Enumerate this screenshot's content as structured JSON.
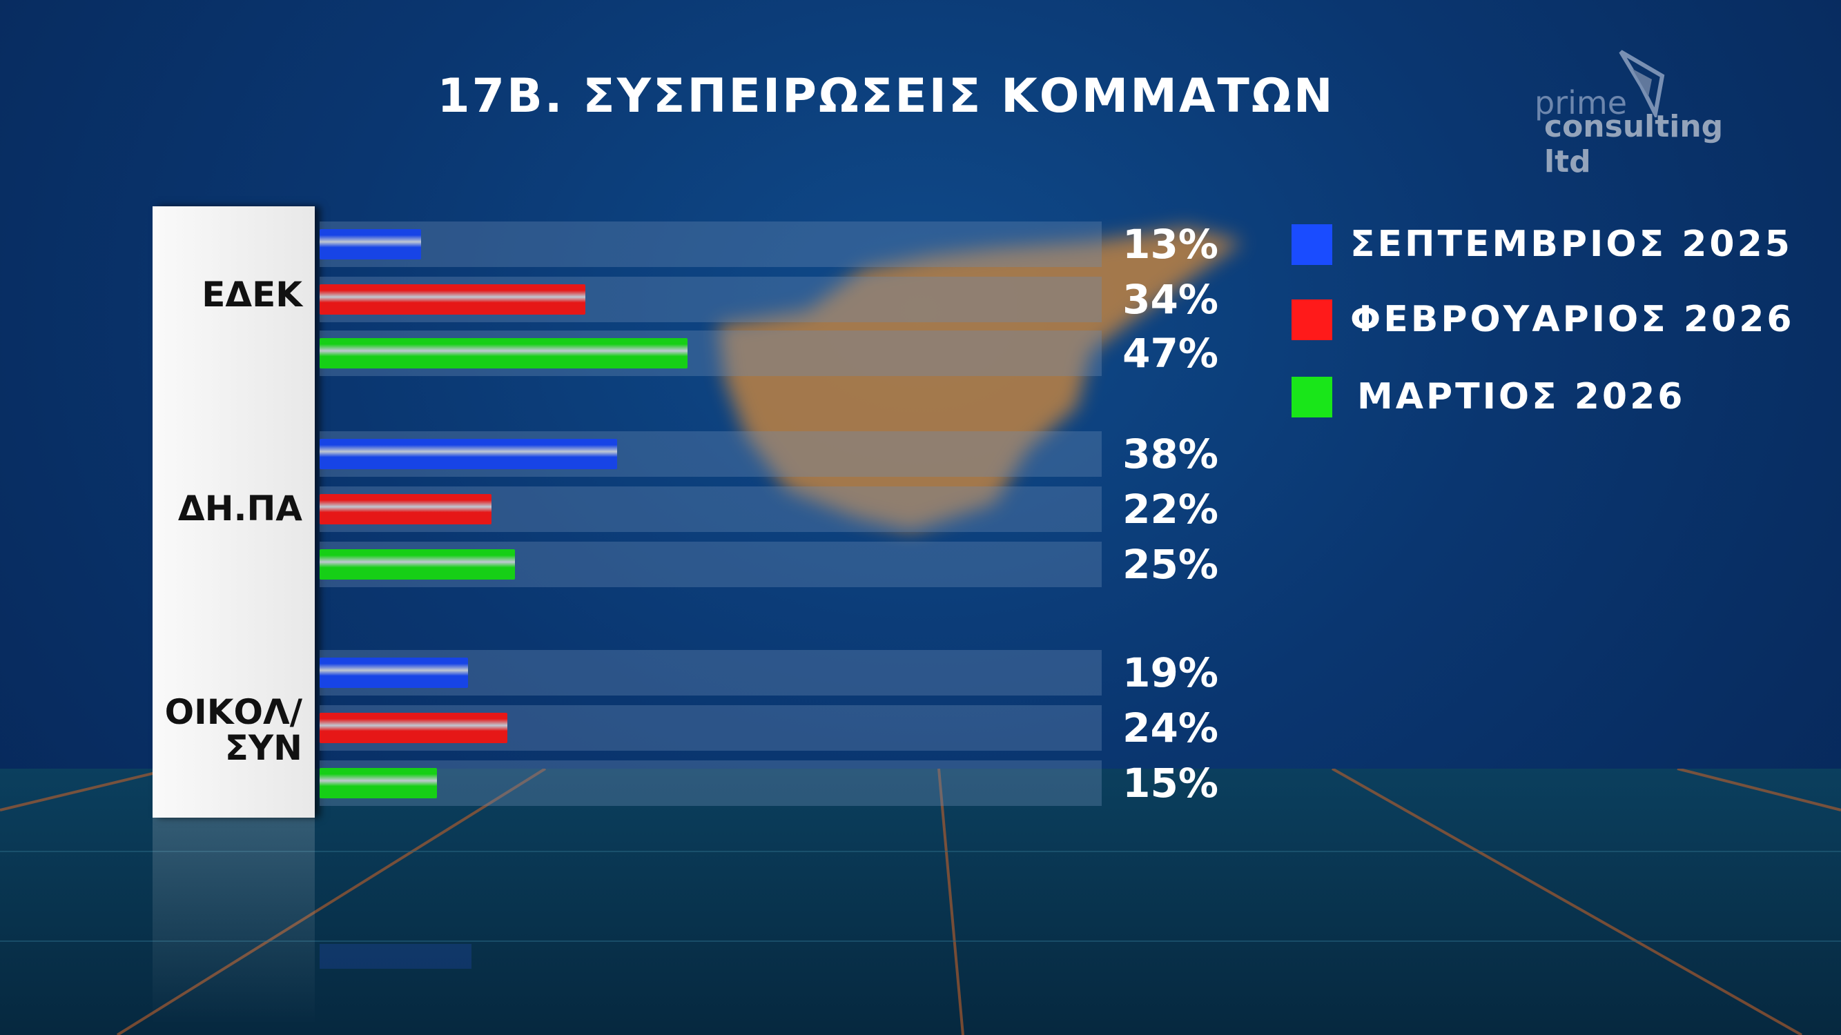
{
  "title": "17B. ΣΥΣΠΕΙΡΩΣΕΙΣ ΚΟΜΜΑΤΩΝ",
  "logo": {
    "line1": "prime",
    "line2": "consulting ltd"
  },
  "chart_data": {
    "type": "bar",
    "orientation": "horizontal",
    "title": "17B. ΣΥΣΠΕΙΡΩΣΕΙΣ ΚΟΜΜΑΤΩΝ",
    "categories": [
      "ΕΔΕΚ",
      "ΔΗ.ΠΑ",
      "ΟΙΚΟΛ/ ΣΥΝ"
    ],
    "category_lines": [
      [
        "ΕΔΕΚ"
      ],
      [
        "ΔΗ.ΠΑ"
      ],
      [
        "ΟΙΚΟΛ/",
        "ΣΥΝ"
      ]
    ],
    "series": [
      {
        "name": "ΣΕΠΤΕΜΒΡΙΟΣ 2025",
        "color": "#1a4cff",
        "values": [
          13,
          38,
          19
        ],
        "labels": [
          "13%",
          "38%",
          "19%"
        ]
      },
      {
        "name": "ΦΕΒΡΟΥΑΡΙΟΣ 2026",
        "color": "#ff1a1a",
        "values": [
          34,
          22,
          24
        ],
        "labels": [
          "34%",
          "22%",
          "24%"
        ]
      },
      {
        "name": "ΜΑΡΤΙΟΣ 2026",
        "color": "#19e619",
        "values": [
          47,
          25,
          15
        ],
        "labels": [
          "47%",
          "25%",
          "15%"
        ]
      }
    ],
    "xlim": [
      0,
      100
    ],
    "unit": "%",
    "legend": "right",
    "grid": false
  }
}
